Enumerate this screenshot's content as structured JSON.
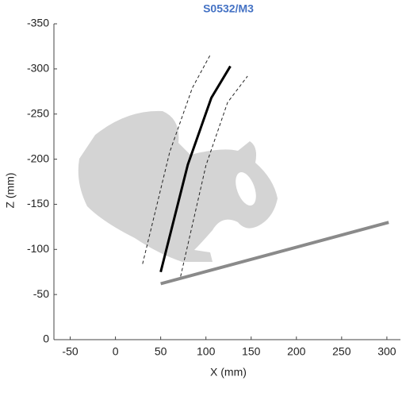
{
  "chart_data": {
    "type": "line",
    "title": "S0532/M3",
    "xlabel": "X (mm)",
    "ylabel": "Z (mm)",
    "xlim": [
      -68,
      315
    ],
    "ylim": [
      0,
      -350
    ],
    "xticks": [
      -50,
      0,
      50,
      100,
      150,
      200,
      250,
      300
    ],
    "yticks": [
      0,
      -50,
      -100,
      -150,
      -200,
      -250,
      -300,
      -350
    ],
    "series": [
      {
        "color": "#000000",
        "style": "solid",
        "width": 3,
        "x": [
          50,
          80,
          106,
          127
        ],
        "values": [
          -75,
          -194,
          -268,
          -303
        ]
      },
      {
        "color": "#222222",
        "style": "dashed",
        "width": 1,
        "x": [
          30,
          60,
          85,
          105
        ],
        "values": [
          -84,
          -208,
          -279,
          -316
        ]
      },
      {
        "color": "#222222",
        "style": "dashed",
        "width": 1,
        "x": [
          72,
          100,
          124,
          146
        ],
        "values": [
          -70,
          -193,
          -263,
          -292
        ]
      },
      {
        "color": "#8a8a8a",
        "style": "solid",
        "width": 4,
        "x": [
          50,
          302
        ],
        "values": [
          -62,
          -130
        ]
      }
    ]
  }
}
